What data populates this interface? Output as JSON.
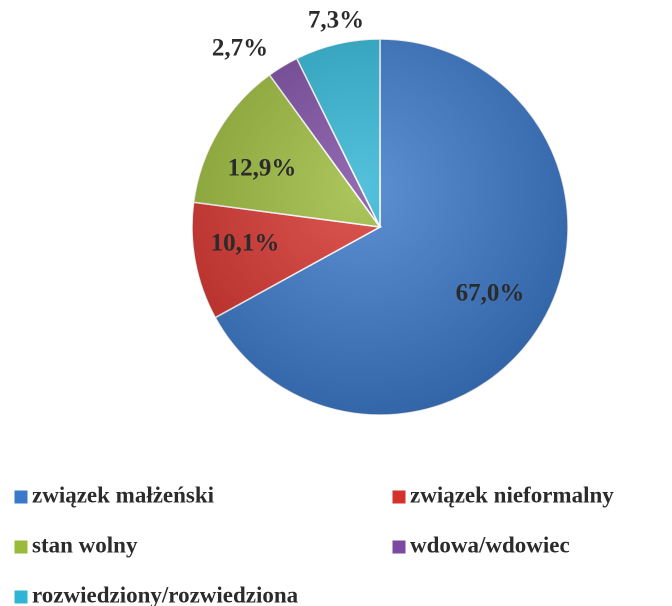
{
  "chart_data": {
    "type": "pie",
    "categories": [
      "związek małżeński",
      "związek nieformalny",
      "stan wolny",
      "wdowa/wdowiec",
      "rozwiedziony/rozwiedziona"
    ],
    "values": [
      67.0,
      10.1,
      12.9,
      2.7,
      7.3
    ],
    "value_labels": [
      "67,0%",
      "10,1%",
      "12,9%",
      "2,7%",
      "7,3%"
    ],
    "colors": [
      "#3a78c9",
      "#d6322d",
      "#9aba3a",
      "#7b4aa0",
      "#2fb4d4"
    ],
    "legend": "bottom"
  }
}
